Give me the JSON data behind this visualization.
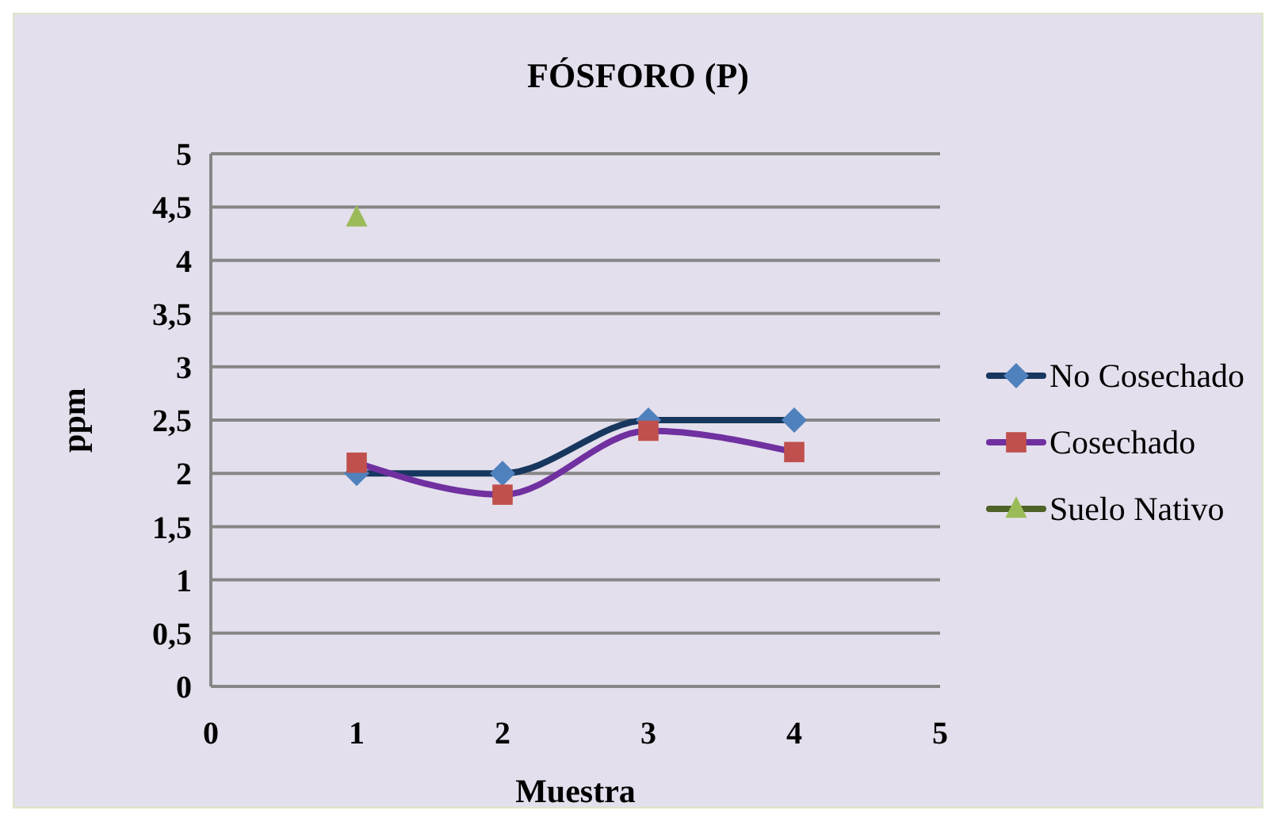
{
  "chart_data": {
    "type": "line",
    "title": "FÓSFORO (P)",
    "xlabel": "Muestra",
    "ylabel": "ppm",
    "x": [
      1,
      2,
      3,
      4
    ],
    "xlim": [
      0,
      5
    ],
    "xticks": [
      0,
      1,
      2,
      3,
      4,
      5
    ],
    "ylim": [
      0,
      5
    ],
    "yticks": [
      0,
      {
        "value": 0.5,
        "label": "0,5"
      },
      1,
      {
        "value": 1.5,
        "label": "1,5"
      },
      2,
      {
        "value": 2.5,
        "label": "2,5"
      },
      3,
      {
        "value": 3.5,
        "label": "3,5"
      },
      4,
      {
        "value": 4.5,
        "label": "4,5"
      },
      5
    ],
    "grid": "y",
    "legend": "right",
    "line_style": "solid",
    "series": [
      {
        "name": "No Cosechado",
        "color": "#17375e",
        "colors": [
          "#4f81bd",
          "#4f81bd",
          "#4f81bd",
          "#4f81bd"
        ],
        "marker": "diamond",
        "values": [
          2,
          2,
          2.5,
          2.5
        ]
      },
      {
        "name": "Cosechado",
        "color": "#7030a0",
        "colors": [
          "#c0504d",
          "#c0504d",
          "#c0504d",
          "#c0504d"
        ],
        "marker": "square",
        "values": [
          2.1,
          1.8,
          2.4,
          2.2
        ]
      },
      {
        "name": "Suelo Nativo",
        "color": "#4f6228",
        "colors": [
          "#9bbb59"
        ],
        "marker": "triangle",
        "x": [
          1
        ],
        "values": [
          4.4
        ]
      }
    ]
  }
}
